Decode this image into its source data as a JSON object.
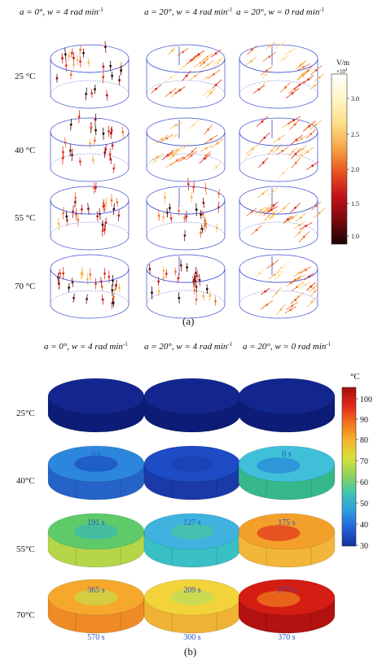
{
  "panel_a": {
    "col_headers": [
      {
        "a_lab": "a = 0°, ",
        "w_lab": "w = 4 rad min",
        "sup": "-1"
      },
      {
        "a_lab": "a = 20°, ",
        "w_lab": "w = 4 rad min",
        "sup": "-1"
      },
      {
        "a_lab": "a = 20°, ",
        "w_lab": "w = 0 rad min",
        "sup": "-1"
      }
    ],
    "row_labels": [
      "25 °C",
      "40 °C",
      "55 °C",
      "70 °C"
    ],
    "colorbar": {
      "unit": "V/m",
      "exp": "×10",
      "exp_sup": "4",
      "ticks": [
        "3.0",
        "2.5",
        "2.0",
        "1.5",
        "1.0"
      ],
      "colors": [
        "#ffffff",
        "#fff6c9",
        "#fde08a",
        "#f7a94a",
        "#e8571f",
        "#c4121a",
        "#7a0a0d",
        "#1a0404"
      ]
    },
    "caption": "(a)"
  },
  "panel_b": {
    "col_headers": [
      {
        "a_lab": "a = 0°, ",
        "w_lab": "w = 4 rad min",
        "sup": "-1"
      },
      {
        "a_lab": "a = 20°, ",
        "w_lab": "w = 4 rad min",
        "sup": "-1"
      },
      {
        "a_lab": "a = 20°, ",
        "w_lab": "w = 0 rad min",
        "sup": "-1"
      }
    ],
    "row_labels": [
      "25°C",
      "40°C",
      "55°C",
      "70°C"
    ],
    "times": [
      [
        "0 s",
        "0 s",
        "0 s"
      ],
      [
        "191 s",
        "127 s",
        "175 s"
      ],
      [
        "365 s",
        "209 s",
        "277 s"
      ],
      [
        "570 s",
        "300 s",
        "370 s"
      ]
    ],
    "disk_colors": [
      [
        {
          "c": "#13268f",
          "s": "#0d1c77",
          "hot": null
        },
        {
          "c": "#13268f",
          "s": "#0d1c77",
          "hot": null
        },
        {
          "c": "#13268f",
          "s": "#0d1c77",
          "hot": null
        }
      ],
      [
        {
          "c": "#2c86dc",
          "s": "#2563c8",
          "hot": "#1b4fc0"
        },
        {
          "c": "#1d4cc4",
          "s": "#1a3aa8",
          "hot": "#1a40b0"
        },
        {
          "c": "#3fc0d8",
          "s": "#37b88a",
          "hot": "#2a8ad8"
        }
      ],
      [
        {
          "c": "#5fca6a",
          "s": "#b6d64a",
          "hot": "#3ab8b0"
        },
        {
          "c": "#3fb2df",
          "s": "#39c0c4",
          "hot": "#4ac6a0"
        },
        {
          "c": "#f3a02a",
          "s": "#f2b63a",
          "hot": "#e23a1e"
        }
      ],
      [
        {
          "c": "#f5a82c",
          "s": "#ef8a26",
          "hot": "#c8da48"
        },
        {
          "c": "#f2d33a",
          "s": "#f0b234",
          "hot": "#bfdc5a"
        },
        {
          "c": "#d41d13",
          "s": "#b21210",
          "hot": "#f07a1c"
        }
      ]
    ],
    "colorbar": {
      "unit": "°C",
      "ticks": [
        "100",
        "90",
        "80",
        "70",
        "60",
        "50",
        "40",
        "30"
      ],
      "colors": [
        "#a40d0d",
        "#e0261a",
        "#f2701e",
        "#f7b42a",
        "#d8e03a",
        "#8fd35a",
        "#3fc4b0",
        "#2e9de0",
        "#2060d6",
        "#16309e"
      ]
    },
    "caption": "(b)"
  }
}
